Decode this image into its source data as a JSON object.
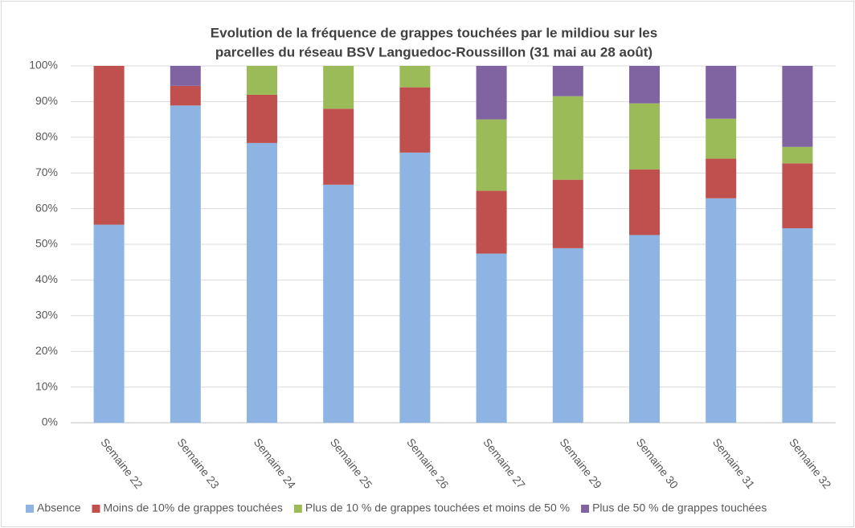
{
  "chart_data": {
    "type": "stacked_bar",
    "title": [
      "Evolution de la fréquence de grappes touchées par le mildiou sur les",
      "parcelles du réseau BSV Languedoc-Roussillon (31 mai au 28 août)"
    ],
    "categories": [
      "Semaine 22",
      "Semaine 23",
      "Semaine 24",
      "Semaine 25",
      "Semaine 26",
      "Semaine 27",
      "Semaine 29",
      "Semaine 30",
      "Semaine 31",
      "Semaine 32"
    ],
    "series": [
      {
        "name": "Absence",
        "color": "#8eb4e3",
        "values": [
          55.5,
          88.9,
          78.4,
          66.7,
          75.7,
          47.4,
          48.9,
          52.6,
          62.9,
          54.5
        ]
      },
      {
        "name": "Moins de 10% de grappes touchées",
        "color": "#c0504d",
        "values": [
          44.5,
          5.5,
          13.5,
          21.3,
          18.3,
          17.6,
          19.2,
          18.4,
          11.1,
          18.2
        ]
      },
      {
        "name": "Plus de 10 % de grappes touchées et moins de 50 %",
        "color": "#9bbb59",
        "values": [
          0,
          0,
          8.1,
          12,
          6,
          20,
          23.4,
          18.5,
          11.2,
          4.6
        ]
      },
      {
        "name": "Plus de 50 % de grappes touchées",
        "color": "#8064a2",
        "values": [
          0,
          5.6,
          0,
          0,
          0,
          15,
          8.5,
          10.5,
          14.8,
          22.7
        ]
      }
    ],
    "ylim": [
      0,
      100
    ],
    "yticks": [
      {
        "value": 0,
        "label": "0%"
      },
      {
        "value": 10,
        "label": "10%"
      },
      {
        "value": 20,
        "label": "20%"
      },
      {
        "value": 30,
        "label": "30%"
      },
      {
        "value": 40,
        "label": "40%"
      },
      {
        "value": 50,
        "label": "50%"
      },
      {
        "value": 60,
        "label": "60%"
      },
      {
        "value": 70,
        "label": "70%"
      },
      {
        "value": 80,
        "label": "80%"
      },
      {
        "value": 90,
        "label": "90%"
      },
      {
        "value": 100,
        "label": "100%"
      }
    ],
    "grid": true,
    "legend": "bottom"
  }
}
